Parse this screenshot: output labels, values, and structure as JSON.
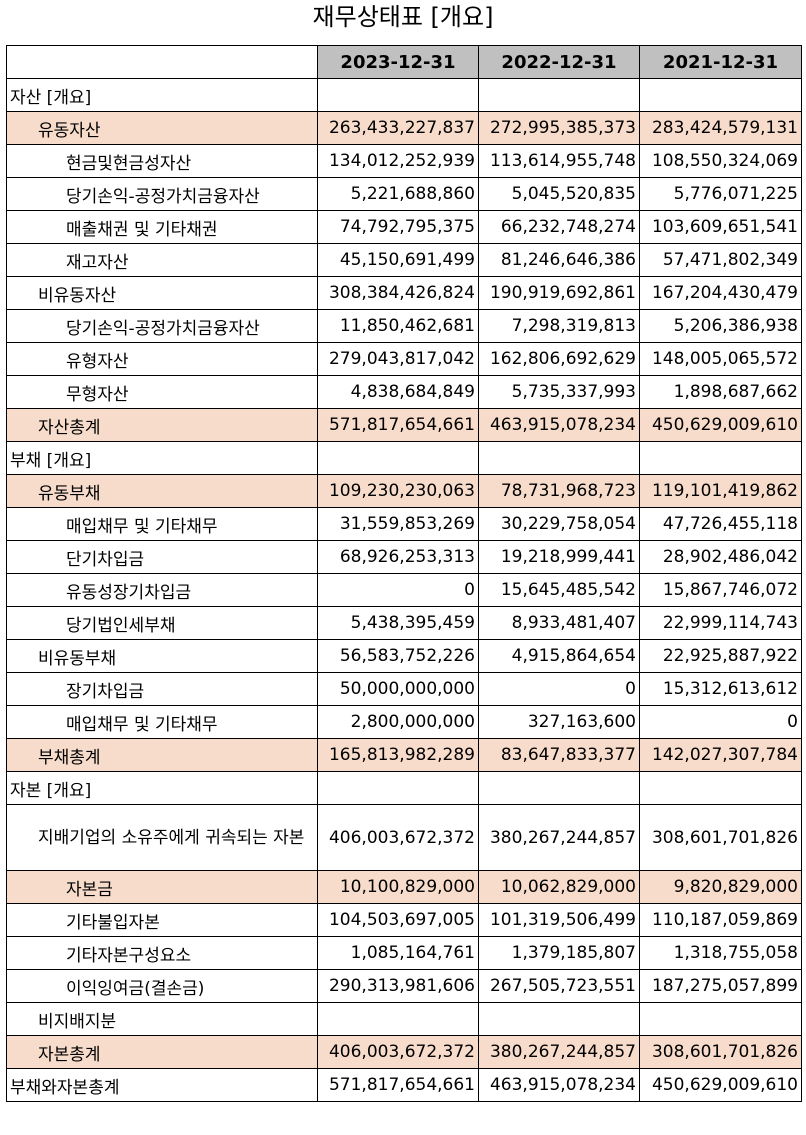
{
  "title": "재무상태표 [개요]",
  "columns": [
    "2023-12-31",
    "2022-12-31",
    "2021-12-31"
  ],
  "rows": [
    {
      "label": "자산 [개요]",
      "values": [
        "",
        "",
        ""
      ]
    },
    {
      "label": "유동자산",
      "values": [
        "263,433,227,837",
        "272,995,385,373",
        "283,424,579,131"
      ]
    },
    {
      "label": "현금및현금성자산",
      "values": [
        "134,012,252,939",
        "113,614,955,748",
        "108,550,324,069"
      ]
    },
    {
      "label": "당기손익-공정가치금융자산",
      "values": [
        "5,221,688,860",
        "5,045,520,835",
        "5,776,071,225"
      ]
    },
    {
      "label": "매출채권 및 기타채권",
      "values": [
        "74,792,795,375",
        "66,232,748,274",
        "103,609,651,541"
      ]
    },
    {
      "label": "재고자산",
      "values": [
        "45,150,691,499",
        "81,246,646,386",
        "57,471,802,349"
      ]
    },
    {
      "label": "비유동자산",
      "values": [
        "308,384,426,824",
        "190,919,692,861",
        "167,204,430,479"
      ]
    },
    {
      "label": "당기손익-공정가치금융자산",
      "values": [
        "11,850,462,681",
        "7,298,319,813",
        "5,206,386,938"
      ]
    },
    {
      "label": "유형자산",
      "values": [
        "279,043,817,042",
        "162,806,692,629",
        "148,005,065,572"
      ]
    },
    {
      "label": "무형자산",
      "values": [
        "4,838,684,849",
        "5,735,337,993",
        "1,898,687,662"
      ]
    },
    {
      "label": "자산총계",
      "values": [
        "571,817,654,661",
        "463,915,078,234",
        "450,629,009,610"
      ]
    },
    {
      "label": "부채 [개요]",
      "values": [
        "",
        "",
        ""
      ]
    },
    {
      "label": "유동부채",
      "values": [
        "109,230,230,063",
        "78,731,968,723",
        "119,101,419,862"
      ]
    },
    {
      "label": "매입채무 및 기타채무",
      "values": [
        "31,559,853,269",
        "30,229,758,054",
        "47,726,455,118"
      ]
    },
    {
      "label": "단기차입금",
      "values": [
        "68,926,253,313",
        "19,218,999,441",
        "28,902,486,042"
      ]
    },
    {
      "label": "유동성장기차입금",
      "values": [
        "0",
        "15,645,485,542",
        "15,867,746,072"
      ]
    },
    {
      "label": "당기법인세부채",
      "values": [
        "5,438,395,459",
        "8,933,481,407",
        "22,999,114,743"
      ]
    },
    {
      "label": "비유동부채",
      "values": [
        "56,583,752,226",
        "4,915,864,654",
        "22,925,887,922"
      ]
    },
    {
      "label": "장기차입금",
      "values": [
        "50,000,000,000",
        "0",
        "15,312,613,612"
      ]
    },
    {
      "label": "매입채무 및 기타채무",
      "values": [
        "2,800,000,000",
        "327,163,600",
        "0"
      ]
    },
    {
      "label": "부채총계",
      "values": [
        "165,813,982,289",
        "83,647,833,377",
        "142,027,307,784"
      ]
    },
    {
      "label": "자본 [개요]",
      "values": [
        "",
        "",
        ""
      ]
    },
    {
      "label": "지배기업의 소유주에게 귀속되는 자본",
      "values": [
        "406,003,672,372",
        "380,267,244,857",
        "308,601,701,826"
      ]
    },
    {
      "label": "자본금",
      "values": [
        "10,100,829,000",
        "10,062,829,000",
        "9,820,829,000"
      ]
    },
    {
      "label": "기타불입자본",
      "values": [
        "104,503,697,005",
        "101,319,506,499",
        "110,187,059,869"
      ]
    },
    {
      "label": "기타자본구성요소",
      "values": [
        "1,085,164,761",
        "1,379,185,807",
        "1,318,755,058"
      ]
    },
    {
      "label": "이익잉여금(결손금)",
      "values": [
        "290,313,981,606",
        "267,505,723,551",
        "187,275,057,899"
      ]
    },
    {
      "label": "비지배지분",
      "values": [
        "",
        "",
        ""
      ]
    },
    {
      "label": "자본총계",
      "values": [
        "406,003,672,372",
        "380,267,244,857",
        "308,601,701,826"
      ]
    },
    {
      "label": "부채와자본총계",
      "values": [
        "571,817,654,661",
        "463,915,078,234",
        "450,629,009,610"
      ]
    }
  ]
}
